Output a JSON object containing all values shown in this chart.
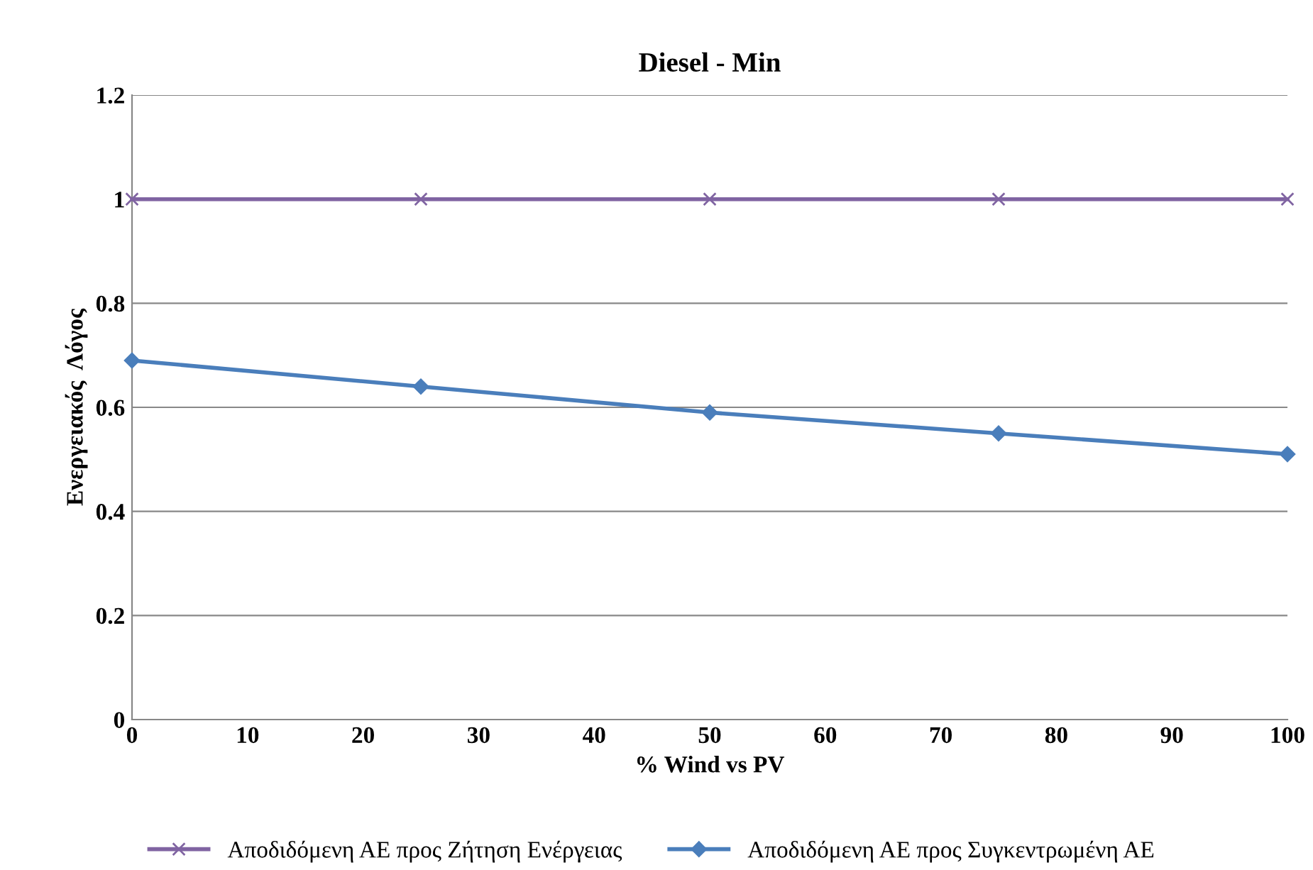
{
  "chart_data": {
    "type": "line",
    "title": "Diesel - Min",
    "xlabel": "% Wind vs PV",
    "ylabel": "Ενεργειακός  Λόγος",
    "x": [
      0,
      25,
      50,
      75,
      100
    ],
    "series": [
      {
        "name": "Αποδιδόμενη ΑΕ προς Ζήτηση Ενέργειας",
        "color": "#8064a2",
        "marker": "cross",
        "values": [
          1,
          1,
          1,
          1,
          1
        ]
      },
      {
        "name": "Αποδιδόμενη ΑΕ προς Συγκεντρωμένη ΑΕ",
        "color": "#4a7ebb",
        "marker": "diamond",
        "values": [
          0.69,
          0.64,
          0.59,
          0.55,
          0.51
        ]
      }
    ],
    "xlim": [
      0,
      100
    ],
    "xticks": [
      0,
      10,
      20,
      30,
      40,
      50,
      60,
      70,
      80,
      90,
      100
    ],
    "ylim": [
      0,
      1.2
    ],
    "yticks": [
      0,
      0.2,
      0.4,
      0.6,
      0.8,
      1,
      1.2
    ],
    "grid": "y",
    "legend": "bottom"
  }
}
